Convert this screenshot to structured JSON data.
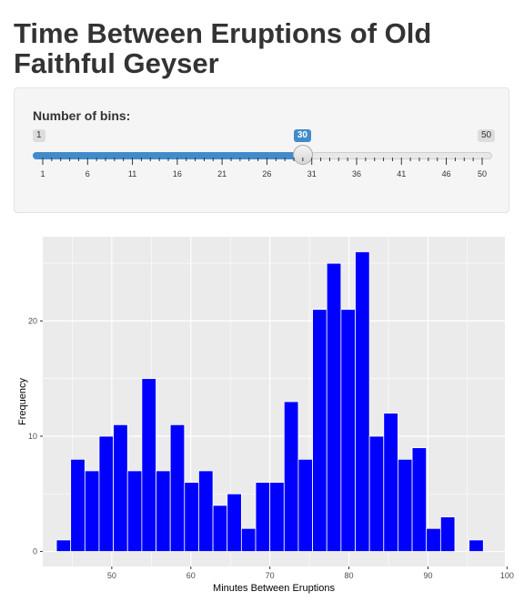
{
  "page": {
    "title": "Time Between Eruptions of Old Faithful Geyser"
  },
  "slider": {
    "label": "Number of bins:",
    "min": 1,
    "max": 50,
    "value": 30,
    "min_label": "1",
    "max_label": "50",
    "value_label": "30",
    "tick_labels": [
      "1",
      "6",
      "11",
      "16",
      "21",
      "26",
      "31",
      "36",
      "41",
      "46",
      "50"
    ],
    "fill_color": "#428bca"
  },
  "chart_data": {
    "type": "bar",
    "xlabel": "Minutes Between Eruptions",
    "ylabel": "Frequency",
    "xlim": [
      41.27,
      99.73
    ],
    "ylim": [
      -1.3,
      27.3
    ],
    "x_ticks": [
      50,
      60,
      70,
      80,
      90,
      100
    ],
    "y_ticks": [
      0,
      10,
      20
    ],
    "bar_color": "#0000ff",
    "panel_color": "#ebebeb",
    "bins": [
      {
        "left": 43.0,
        "right": 44.8,
        "count": 1
      },
      {
        "left": 44.8,
        "right": 46.6,
        "count": 8
      },
      {
        "left": 46.6,
        "right": 48.4,
        "count": 7
      },
      {
        "left": 48.4,
        "right": 50.2,
        "count": 10
      },
      {
        "left": 50.2,
        "right": 52.0,
        "count": 11
      },
      {
        "left": 52.0,
        "right": 53.8,
        "count": 7
      },
      {
        "left": 53.8,
        "right": 55.6,
        "count": 15
      },
      {
        "left": 55.6,
        "right": 57.4,
        "count": 7
      },
      {
        "left": 57.4,
        "right": 59.2,
        "count": 11
      },
      {
        "left": 59.2,
        "right": 61.0,
        "count": 6
      },
      {
        "left": 61.0,
        "right": 62.8,
        "count": 7
      },
      {
        "left": 62.8,
        "right": 64.6,
        "count": 4
      },
      {
        "left": 64.6,
        "right": 66.4,
        "count": 5
      },
      {
        "left": 66.4,
        "right": 68.2,
        "count": 2
      },
      {
        "left": 68.2,
        "right": 70.0,
        "count": 6
      },
      {
        "left": 70.0,
        "right": 71.8,
        "count": 6
      },
      {
        "left": 71.8,
        "right": 73.6,
        "count": 13
      },
      {
        "left": 73.6,
        "right": 75.4,
        "count": 8
      },
      {
        "left": 75.4,
        "right": 77.2,
        "count": 21
      },
      {
        "left": 77.2,
        "right": 79.0,
        "count": 25
      },
      {
        "left": 79.0,
        "right": 80.8,
        "count": 21
      },
      {
        "left": 80.8,
        "right": 82.6,
        "count": 26
      },
      {
        "left": 82.6,
        "right": 84.4,
        "count": 10
      },
      {
        "left": 84.4,
        "right": 86.2,
        "count": 12
      },
      {
        "left": 86.2,
        "right": 88.0,
        "count": 8
      },
      {
        "left": 88.0,
        "right": 89.8,
        "count": 9
      },
      {
        "left": 89.8,
        "right": 91.6,
        "count": 2
      },
      {
        "left": 91.6,
        "right": 93.4,
        "count": 3
      },
      {
        "left": 93.4,
        "right": 95.2,
        "count": 0
      },
      {
        "left": 95.2,
        "right": 97.0,
        "count": 1
      }
    ]
  }
}
